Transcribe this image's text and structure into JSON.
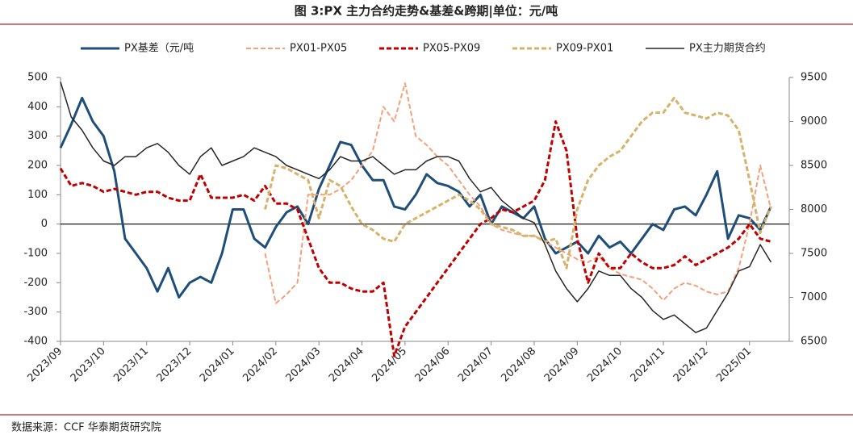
{
  "chart_data": {
    "type": "line",
    "title": "图 3:PX 主力合约走势&基差&跨期|单位：元/吨",
    "source": "数据来源：CCF  华泰期货研究院",
    "categories": [
      "2023/09",
      null,
      null,
      null,
      "2023/10",
      null,
      null,
      null,
      "2023/11",
      null,
      null,
      null,
      "2023/12",
      null,
      null,
      null,
      "2024/01",
      null,
      null,
      null,
      "2024/02",
      null,
      null,
      null,
      "2024/03",
      null,
      null,
      null,
      "2024/04",
      null,
      null,
      null,
      "2024/05",
      null,
      null,
      null,
      "2024/06",
      null,
      null,
      null,
      "2024/07",
      null,
      null,
      null,
      "2024/08",
      null,
      null,
      null,
      "2024/09",
      null,
      null,
      null,
      "2024/10",
      null,
      null,
      null,
      "2024/11",
      null,
      null,
      null,
      "2024/12",
      null,
      null,
      null,
      "2025/01",
      null,
      null
    ],
    "series": [
      {
        "name": "PX基差（元/吨",
        "color": "#1f4e79",
        "line_style": "solid",
        "width": 3,
        "axis": "y",
        "values": [
          260,
          340,
          430,
          350,
          300,
          180,
          -50,
          -100,
          -150,
          -230,
          -150,
          -250,
          -200,
          -180,
          -200,
          -100,
          50,
          50,
          -50,
          -80,
          -10,
          40,
          60,
          0,
          120,
          200,
          280,
          270,
          200,
          150,
          150,
          60,
          50,
          100,
          170,
          140,
          130,
          110,
          60,
          100,
          0,
          60,
          40,
          20,
          60,
          -50,
          -100,
          -80,
          -60,
          -100,
          -40,
          -80,
          -60,
          -100,
          -50,
          0,
          -20,
          50,
          60,
          30,
          100,
          180,
          -50,
          30,
          20,
          -20,
          60
        ]
      },
      {
        "name": "PX01-PX05",
        "color": "#f4a07c",
        "line_style": "dashed",
        "width": 2,
        "axis": "y",
        "values": [
          null,
          null,
          null,
          null,
          null,
          null,
          null,
          null,
          null,
          null,
          null,
          null,
          null,
          null,
          null,
          null,
          null,
          null,
          null,
          -100,
          -270,
          -240,
          -200,
          100,
          100,
          100,
          120,
          150,
          200,
          250,
          400,
          350,
          480,
          300,
          270,
          230,
          200,
          150,
          100,
          60,
          0,
          -20,
          -30,
          -40,
          -40,
          -60,
          -80,
          -100,
          -120,
          -130,
          -110,
          -150,
          -170,
          -180,
          -190,
          -220,
          -260,
          -220,
          -200,
          -210,
          -230,
          -240,
          -230,
          -150,
          0,
          200,
          50
        ]
      },
      {
        "name": "PX05-PX09",
        "color": "#c00000",
        "line_style": "dashed",
        "width": 3,
        "axis": "y",
        "values": [
          190,
          130,
          140,
          130,
          110,
          120,
          110,
          100,
          110,
          110,
          90,
          80,
          80,
          170,
          90,
          90,
          90,
          100,
          80,
          130,
          70,
          70,
          50,
          -50,
          -150,
          -200,
          -200,
          -220,
          -230,
          -230,
          -200,
          -450,
          -350,
          -300,
          -250,
          -200,
          -150,
          -100,
          -50,
          0,
          20,
          50,
          40,
          60,
          80,
          150,
          350,
          250,
          -50,
          -200,
          -100,
          -150,
          -150,
          -100,
          -130,
          -150,
          -150,
          -140,
          -110,
          -140,
          -120,
          -100,
          -80,
          -50,
          0,
          -50,
          -60
        ]
      },
      {
        "name": "PX09-PX01",
        "color": "#d6b26a",
        "line_style": "dashed",
        "width": 3,
        "axis": "y",
        "values": [
          null,
          null,
          null,
          null,
          null,
          null,
          null,
          null,
          null,
          null,
          null,
          null,
          null,
          null,
          null,
          null,
          null,
          null,
          null,
          50,
          200,
          190,
          170,
          150,
          20,
          150,
          130,
          60,
          0,
          -20,
          -50,
          -60,
          0,
          20,
          40,
          60,
          80,
          100,
          80,
          50,
          0,
          -10,
          -20,
          -40,
          -40,
          -60,
          -50,
          -150,
          50,
          150,
          200,
          230,
          250,
          300,
          350,
          380,
          380,
          430,
          380,
          370,
          360,
          380,
          370,
          320,
          150,
          -30,
          60
        ]
      },
      {
        "name": "PX主力期货合约",
        "color": "#262626",
        "line_style": "solid",
        "width": 1.5,
        "axis": "y2",
        "values": [
          9450,
          9050,
          8900,
          8700,
          8550,
          8500,
          8600,
          8600,
          8700,
          8750,
          8650,
          8500,
          8400,
          8600,
          8700,
          8500,
          8550,
          8600,
          8700,
          8650,
          8600,
          8500,
          8450,
          8400,
          8350,
          8450,
          8600,
          8550,
          8550,
          8600,
          8500,
          8400,
          8450,
          8450,
          8550,
          8600,
          8600,
          8550,
          8350,
          8200,
          8250,
          8100,
          8000,
          7900,
          7850,
          7600,
          7300,
          7100,
          6950,
          7100,
          7300,
          7250,
          7250,
          7100,
          7000,
          6850,
          6750,
          6800,
          6700,
          6600,
          6650,
          6850,
          7050,
          7300,
          7350,
          7600,
          7400
        ]
      }
    ],
    "ylim": [
      -400,
      500
    ],
    "yticks": [
      -400,
      -300,
      -200,
      -100,
      0,
      100,
      200,
      300,
      400,
      500
    ],
    "y2lim": [
      6500,
      9500
    ],
    "y2ticks": [
      6500,
      7000,
      7500,
      8000,
      8500,
      9000,
      9500
    ]
  }
}
